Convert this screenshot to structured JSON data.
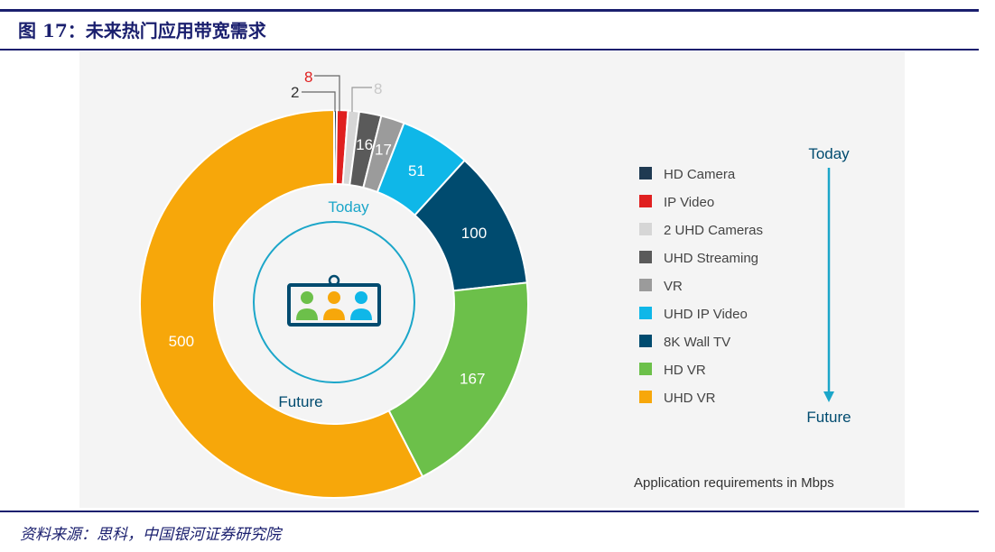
{
  "figure": {
    "title": "图 17：未来热门应用带宽需求",
    "source": "资料来源：思科，中国银河证券研究院"
  },
  "chart_data": {
    "type": "pie",
    "subtype": "donut",
    "unit_note": "Application requirements in Mbps",
    "inner_labels": {
      "top": "Today",
      "bottom": "Future"
    },
    "arrow_labels": {
      "top": "Today",
      "bottom": "Future"
    },
    "legend_placement": "right",
    "slices": [
      {
        "name": "HD Camera",
        "value": 2,
        "label": "2",
        "color": "#1f3a52"
      },
      {
        "name": "IP Video",
        "value": 8,
        "label": "8",
        "color": "#e02020"
      },
      {
        "name": "2 UHD Cameras",
        "value": 8,
        "label": "8",
        "color": "#d6d6d6"
      },
      {
        "name": "UHD Streaming",
        "value": 16,
        "label": "16",
        "color": "#5a5a5a"
      },
      {
        "name": "VR",
        "value": 17,
        "label": "17",
        "color": "#9b9b9b"
      },
      {
        "name": "UHD IP Video",
        "value": 51,
        "label": "51",
        "color": "#0fb7e8"
      },
      {
        "name": "8K Wall TV",
        "value": 100,
        "label": "100",
        "color": "#004b6f"
      },
      {
        "name": "HD VR",
        "value": 167,
        "label": "167",
        "color": "#6cc04a"
      },
      {
        "name": "UHD VR",
        "value": 500,
        "label": "500",
        "color": "#f7a70a"
      }
    ],
    "colors": {
      "accent": "#1ba6c9",
      "today_text": "#1ba6c9",
      "future_text": "#004b6f"
    }
  }
}
